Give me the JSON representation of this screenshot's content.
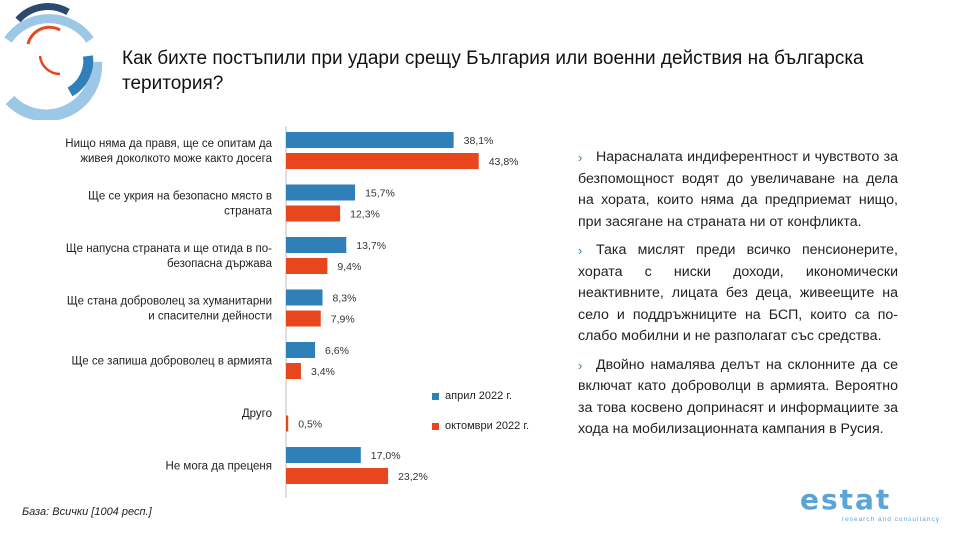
{
  "title": "Как бихте постъпили при удари срещу България или военни действия на българска територия?",
  "colors": {
    "series1": "#2f7fb8",
    "series2": "#e8471e",
    "accent": "#2f7fb8",
    "brand": "#5aa4d6"
  },
  "chart_data": {
    "type": "bar",
    "orientation": "horizontal",
    "categories": [
      [
        "Нищо няма да правя, ще се опитам да",
        "живея доколкото може както досега"
      ],
      [
        "Ще се укрия на безопасно място в",
        "страната"
      ],
      [
        "Ще напусна страната и ще отида в по-",
        "безопасна държава"
      ],
      [
        "Ще стана доброволец за хуманитарни",
        "и спасителни дейности"
      ],
      [
        "Ще се запиша доброволец в армията"
      ],
      [
        "Друго"
      ],
      [
        "Не мога да преценя"
      ]
    ],
    "series": [
      {
        "name": "април 2022 г.",
        "values": [
          38.1,
          15.7,
          13.7,
          8.3,
          6.6,
          null,
          17.0
        ],
        "labels": [
          "38,1%",
          "15,7%",
          "13,7%",
          "8,3%",
          "6,6%",
          null,
          "17,0%"
        ]
      },
      {
        "name": "октомври 2022 г.",
        "values": [
          43.8,
          12.3,
          9.4,
          7.9,
          3.4,
          0.5,
          23.2
        ],
        "labels": [
          "43,8%",
          "12,3%",
          "9,4%",
          "7,9%",
          "3,4%",
          "0,5%",
          "23,2%"
        ]
      }
    ],
    "grid": false
  },
  "legend": {
    "s1": "април 2022 г.",
    "s2": "октомври 2022 г."
  },
  "bullets": [
    "Нарасналата индиферентност и чувството за безпомощност водят до увеличаване на дела на хората, които няма да предприемат нищо, при засягане на страната ни от конфликта.",
    "Така мислят преди всичко пенсионерите, хората с ниски доходи, икономически неактивните, лицата без деца, живеещите на село и поддръжниците на БСП, които са по-слабо мобилни и не разполагат със средства.",
    "Двойно намалява делът на склонните да се включат като доброволци в армията. Вероятно за това косвено допринасят и информациите за хода на мобилизационната кампания в Русия."
  ],
  "bullet_marker": "›",
  "footnote": "База: Всички [1004 респ.]",
  "brand": {
    "name": "estat",
    "tagline": "research and consultancy"
  }
}
